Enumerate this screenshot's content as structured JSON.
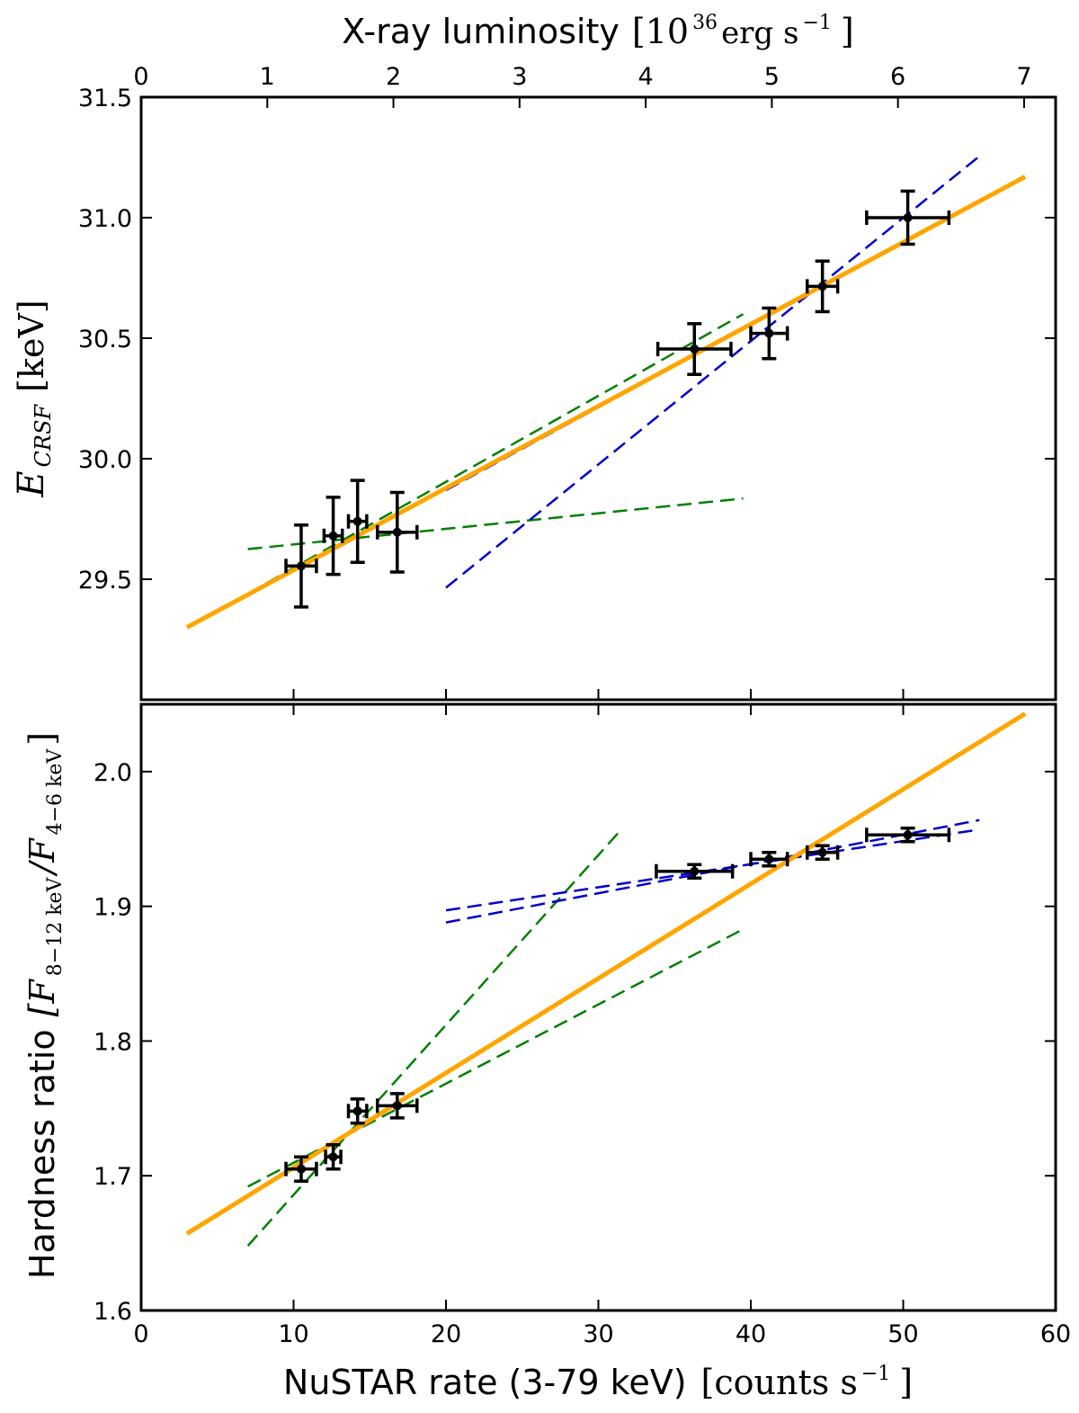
{
  "chart_data": [
    {
      "type": "scatter",
      "panel": "top",
      "x_top_label_prefix": "X-ray luminosity",
      "x_top_label_unit": "[10",
      "x_top_label_exp": "36",
      "x_top_label_unit_rest": " erg s",
      "x_top_label_unit_exp": "−1",
      "x_top_label_close": "]",
      "x_top_ticks": [
        "0",
        "1",
        "2",
        "3",
        "4",
        "5",
        "6",
        "7"
      ],
      "x_top_range": [
        0,
        7.25
      ],
      "ylabel_main": "E",
      "ylabel_sub": "CRSF",
      "ylabel_unit": "[keV]",
      "ylim": [
        29.0,
        31.5
      ],
      "y_ticks": [
        "29.5",
        "30.0",
        "30.5",
        "31.0",
        "31.5"
      ],
      "xlim": [
        0,
        60
      ],
      "points": [
        {
          "x": 10.5,
          "y": 29.555,
          "xerr": 1.0,
          "yerr": 0.17
        },
        {
          "x": 12.6,
          "y": 29.68,
          "xerr": 0.6,
          "yerr": 0.16
        },
        {
          "x": 14.2,
          "y": 29.74,
          "xerr": 0.6,
          "yerr": 0.17
        },
        {
          "x": 16.8,
          "y": 29.695,
          "xerr": 1.3,
          "yerr": 0.165
        },
        {
          "x": 36.3,
          "y": 30.455,
          "xerr": 2.4,
          "yerr": 0.105
        },
        {
          "x": 41.2,
          "y": 30.52,
          "xerr": 1.2,
          "yerr": 0.105
        },
        {
          "x": 44.7,
          "y": 30.715,
          "xerr": 1.0,
          "yerr": 0.105
        },
        {
          "x": 50.3,
          "y": 31.0,
          "xerr": 2.7,
          "yerr": 0.11
        }
      ],
      "fit_line": {
        "color": "#FFA500",
        "x": [
          3.0,
          58.0
        ],
        "y": [
          29.3,
          31.17
        ]
      },
      "dashed_lines": [
        {
          "color": "#008000",
          "x": [
            7.0,
            39.5
          ],
          "y": [
            29.625,
            29.835
          ]
        },
        {
          "color": "#008000",
          "x": [
            7.0,
            39.5
          ],
          "y": [
            29.44,
            30.6
          ]
        },
        {
          "color": "#0000CC",
          "x": [
            20.0,
            55.0
          ],
          "y": [
            29.465,
            31.255
          ]
        },
        {
          "color": "#0000CC",
          "x": [
            20.0,
            55.0
          ],
          "y": [
            29.87,
            31.07
          ]
        }
      ]
    },
    {
      "type": "scatter",
      "panel": "bottom",
      "xlabel": "NuSTAR rate (3-79 keV)",
      "xlabel_unit": "[counts s",
      "xlabel_unit_exp": "−1",
      "xlabel_close": "]",
      "x_ticks": [
        "0",
        "10",
        "20",
        "30",
        "40",
        "50",
        "60"
      ],
      "xlim": [
        0,
        60
      ],
      "ylabel_prefix": "Hardness ratio",
      "ylabel_open": "[F",
      "ylabel_sub1": "8−12 keV",
      "ylabel_mid": "/F",
      "ylabel_sub2": "4−6 keV",
      "ylabel_close": "]",
      "ylim": [
        1.6,
        2.05
      ],
      "y_ticks": [
        "1.6",
        "1.7",
        "1.8",
        "1.9",
        "2.0"
      ],
      "points": [
        {
          "x": 10.5,
          "y": 1.705,
          "xerr": 1.0,
          "yerr": 0.009
        },
        {
          "x": 12.6,
          "y": 1.714,
          "xerr": 0.5,
          "yerr": 0.009
        },
        {
          "x": 14.2,
          "y": 1.748,
          "xerr": 0.6,
          "yerr": 0.009
        },
        {
          "x": 16.8,
          "y": 1.752,
          "xerr": 1.3,
          "yerr": 0.009
        },
        {
          "x": 36.3,
          "y": 1.926,
          "xerr": 2.5,
          "yerr": 0.005
        },
        {
          "x": 41.2,
          "y": 1.935,
          "xerr": 1.2,
          "yerr": 0.005
        },
        {
          "x": 44.7,
          "y": 1.94,
          "xerr": 1.0,
          "yerr": 0.005
        },
        {
          "x": 50.3,
          "y": 1.953,
          "xerr": 2.7,
          "yerr": 0.005
        }
      ],
      "fit_line": {
        "color": "#FFA500",
        "x": [
          3.0,
          58.0
        ],
        "y": [
          1.657,
          2.043
        ]
      },
      "dashed_lines": [
        {
          "color": "#008000",
          "x": [
            7.0,
            31.5
          ],
          "y": [
            1.648,
            1.957
          ]
        },
        {
          "color": "#008000",
          "x": [
            7.0,
            39.5
          ],
          "y": [
            1.692,
            1.883
          ]
        },
        {
          "color": "#0000CC",
          "x": [
            20.0,
            55.0
          ],
          "y": [
            1.888,
            1.964
          ]
        },
        {
          "color": "#0000CC",
          "x": [
            20.0,
            55.0
          ],
          "y": [
            1.897,
            1.957
          ]
        }
      ]
    }
  ]
}
